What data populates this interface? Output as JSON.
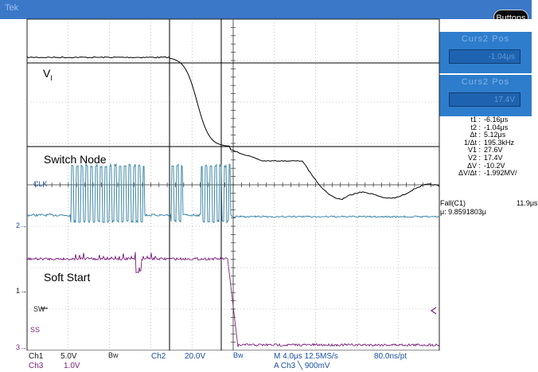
{
  "toolbar": {
    "brand": "Tek",
    "buttons_label": "Buttons"
  },
  "cursor_panels": [
    {
      "title": "Curs2 Pos",
      "value": "-1.04μs"
    },
    {
      "title": "Curs2 Pos",
      "value": "17.4V"
    }
  ],
  "readouts": [
    {
      "key": "t1 :",
      "value": "-6.16μs"
    },
    {
      "key": "t2 :",
      "value": "-1.04μs"
    },
    {
      "key": "Δt :",
      "value": "5.12μs"
    },
    {
      "key": "1/Δt :",
      "value": "195.3kHz"
    },
    {
      "key": "V1 :",
      "value": "27.6V"
    },
    {
      "key": "V2 :",
      "value": "17.4V"
    },
    {
      "key": "ΔV :",
      "value": "-10.2V"
    },
    {
      "key": "ΔV/Δt :",
      "value": "-1.992MV/"
    }
  ],
  "measurement": {
    "label": "Fall(C1)",
    "value": "11.9μs",
    "mean": "μ: 9.8591803μ"
  },
  "trace_labels": {
    "vi_main": "V",
    "vi_sub": "I",
    "switch_node": "Switch Node",
    "soft_start": "Soft Start",
    "clk": "CLK",
    "sw": "SW",
    "ss": "SS"
  },
  "channel_markers": {
    "ch2": "2",
    "ch1": "1",
    "ch3": "3"
  },
  "status": {
    "ch1": "Ch1",
    "ch1_scale": "5.0V",
    "bw1": "Bw",
    "ch2": "Ch2",
    "ch2_scale": "20.0V",
    "bw2": "Bw",
    "ch3": "Ch3",
    "ch3_scale": "1.0V",
    "timebase": "M 4.0μs 12.5MS/s",
    "sample": "80.0ns/pt",
    "trigger": "A  Ch3  ╲  900mV"
  },
  "colors": {
    "panel": "#2e7dcc",
    "ch2": "#2f7fa3",
    "ch3": "#7a1f7a",
    "grid": "#9a9a9a"
  }
}
